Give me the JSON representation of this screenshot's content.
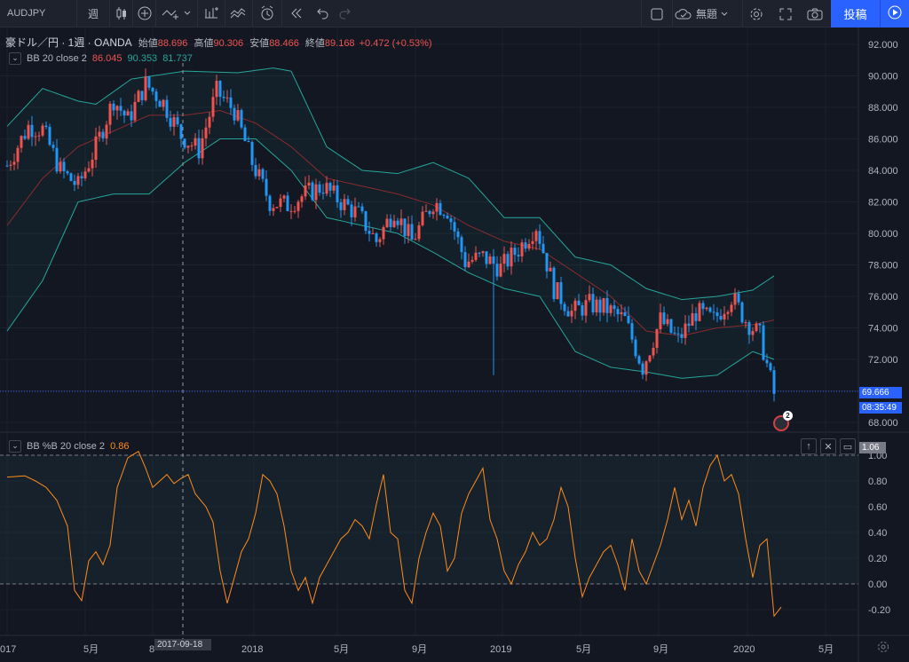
{
  "toolbar": {
    "symbol": "AUDJPY",
    "interval": "週",
    "layout_name": "無題",
    "publish_label": "投稿",
    "icons": [
      "plus-circle-icon",
      "indicators-icon",
      "chart-type-icon",
      "compare-icon",
      "templates-icon",
      "alert-clock-icon",
      "replay-icon",
      "undo-icon",
      "redo-icon",
      "square-icon",
      "cloud-icon",
      "gear-icon",
      "fullscreen-icon",
      "camera-icon",
      "play-icon"
    ]
  },
  "legend": {
    "title": "豪ドル／円 · 1週 · OANDA",
    "open_label": "始値",
    "open_value": "88.696",
    "high_label": "高値",
    "high_value": "90.306",
    "low_label": "安値",
    "low_value": "88.466",
    "close_label": "終値",
    "close_value": "89.168",
    "change": "+0.472 (+0.53%)",
    "bb_label": "BB 20 close 2",
    "bb_basis": "86.045",
    "bb_upper": "90.353",
    "bb_lower": "81.737",
    "pb_label": "BB %B 20 close 2",
    "pb_value": "0.86"
  },
  "price_scale": {
    "labels": [
      "92.000",
      "90.000",
      "88.000",
      "86.000",
      "84.000",
      "82.000",
      "80.000",
      "78.000",
      "76.000",
      "74.000",
      "72.000",
      "68.000"
    ],
    "current_price": "69.666",
    "countdown": "08:35:49"
  },
  "pb_scale": {
    "labels": [
      "0.80",
      "0.60",
      "0.40",
      "0.20",
      "0.00",
      "-0.20"
    ],
    "current_value": "1.06",
    "top_label": "1.00"
  },
  "time_axis": {
    "labels": [
      "017",
      "5月",
      "8",
      "2018",
      "5月",
      "9月",
      "2019",
      "5月",
      "9月",
      "2020",
      "5月"
    ],
    "crosshair_date": "2017-09-18"
  },
  "events": {
    "count": "2"
  },
  "colors": {
    "up": "#ef5350",
    "down": "#2196f3",
    "bb_band": "#26a69a",
    "bb_basis": "#8b2b2b",
    "pb_line": "#ff8c1a",
    "accent": "#2962ff",
    "background": "#131722"
  },
  "chart_data": {
    "type": "candlestick",
    "symbol": "AUDJPY",
    "interval": "1W",
    "ylim": [
      67.5,
      92.8
    ],
    "series_price_knots": [
      [
        0,
        84.3
      ],
      [
        6,
        86.8
      ],
      [
        10,
        86.6
      ],
      [
        15,
        84.0
      ],
      [
        20,
        83.0
      ],
      [
        25,
        85.5
      ],
      [
        30,
        88.5
      ],
      [
        34,
        87.2
      ],
      [
        39,
        89.5
      ],
      [
        44,
        88.3
      ],
      [
        49,
        86.2
      ],
      [
        54,
        85.3
      ],
      [
        59,
        89.0
      ],
      [
        64,
        87.8
      ],
      [
        69,
        84.5
      ],
      [
        74,
        82.0
      ],
      [
        79,
        81.8
      ],
      [
        84,
        82.5
      ],
      [
        89,
        83.0
      ],
      [
        94,
        82.0
      ],
      [
        99,
        81.2
      ],
      [
        104,
        79.5
      ],
      [
        109,
        81.5
      ],
      [
        114,
        79.5
      ],
      [
        120,
        82.0
      ],
      [
        124,
        81.5
      ],
      [
        129,
        78.2
      ],
      [
        134,
        78.5
      ],
      [
        139,
        77.8
      ],
      [
        144,
        79.0
      ],
      [
        149,
        80.5
      ],
      [
        154,
        76.5
      ],
      [
        159,
        75.0
      ],
      [
        164,
        75.5
      ],
      [
        169,
        75.2
      ],
      [
        174,
        74.5
      ],
      [
        179,
        71.5
      ],
      [
        184,
        74.5
      ],
      [
        189,
        73.2
      ],
      [
        194,
        75.0
      ],
      [
        199,
        74.5
      ],
      [
        204,
        76.0
      ],
      [
        208,
        74.5
      ],
      [
        212,
        73.5
      ],
      [
        216,
        69.8
      ]
    ],
    "bb_upper_knots": [
      [
        0,
        86.8
      ],
      [
        10,
        89.2
      ],
      [
        20,
        88.4
      ],
      [
        25,
        88.2
      ],
      [
        35,
        89.8
      ],
      [
        50,
        90.3
      ],
      [
        65,
        90.2
      ],
      [
        75,
        90.5
      ],
      [
        80,
        90.3
      ],
      [
        90,
        85.5
      ],
      [
        100,
        84.0
      ],
      [
        110,
        83.8
      ],
      [
        120,
        84.5
      ],
      [
        130,
        83.5
      ],
      [
        140,
        81.0
      ],
      [
        150,
        81.0
      ],
      [
        160,
        78.5
      ],
      [
        170,
        78.0
      ],
      [
        180,
        76.5
      ],
      [
        190,
        75.8
      ],
      [
        200,
        76.0
      ],
      [
        210,
        76.4
      ],
      [
        216,
        77.3
      ]
    ],
    "bb_lower_knots": [
      [
        0,
        73.8
      ],
      [
        10,
        77.0
      ],
      [
        20,
        82.0
      ],
      [
        30,
        82.5
      ],
      [
        40,
        82.5
      ],
      [
        50,
        84.5
      ],
      [
        60,
        86.0
      ],
      [
        70,
        86.0
      ],
      [
        80,
        84.0
      ],
      [
        90,
        81.0
      ],
      [
        100,
        80.5
      ],
      [
        110,
        80.0
      ],
      [
        120,
        78.8
      ],
      [
        130,
        77.5
      ],
      [
        140,
        76.5
      ],
      [
        150,
        76.0
      ],
      [
        160,
        72.5
      ],
      [
        170,
        71.5
      ],
      [
        180,
        71.2
      ],
      [
        190,
        70.8
      ],
      [
        200,
        71.0
      ],
      [
        210,
        72.5
      ],
      [
        216,
        72.0
      ]
    ],
    "bb_basis_knots": [
      [
        0,
        80.5
      ],
      [
        10,
        83.5
      ],
      [
        20,
        85.5
      ],
      [
        30,
        86.5
      ],
      [
        40,
        87.5
      ],
      [
        50,
        87.5
      ],
      [
        60,
        87.8
      ],
      [
        70,
        87.0
      ],
      [
        80,
        85.5
      ],
      [
        90,
        83.5
      ],
      [
        100,
        83.0
      ],
      [
        110,
        82.5
      ],
      [
        120,
        81.8
      ],
      [
        130,
        80.5
      ],
      [
        140,
        79.5
      ],
      [
        150,
        79.0
      ],
      [
        160,
        77.5
      ],
      [
        170,
        76.0
      ],
      [
        180,
        73.8
      ],
      [
        190,
        73.5
      ],
      [
        200,
        74.0
      ],
      [
        210,
        74.2
      ],
      [
        216,
        74.5
      ]
    ],
    "percent_b_knots": [
      [
        0,
        0.83
      ],
      [
        5,
        0.84
      ],
      [
        8,
        0.8
      ],
      [
        11,
        0.75
      ],
      [
        14,
        0.65
      ],
      [
        17,
        0.45
      ],
      [
        19,
        -0.05
      ],
      [
        21,
        -0.13
      ],
      [
        23,
        0.18
      ],
      [
        25,
        0.25
      ],
      [
        27,
        0.15
      ],
      [
        29,
        0.3
      ],
      [
        31,
        0.75
      ],
      [
        34,
        0.98
      ],
      [
        37,
        1.03
      ],
      [
        39,
        0.9
      ],
      [
        41,
        0.75
      ],
      [
        43,
        0.8
      ],
      [
        45,
        0.85
      ],
      [
        47,
        0.78
      ],
      [
        49,
        0.82
      ],
      [
        51,
        0.85
      ],
      [
        53,
        0.7
      ],
      [
        56,
        0.6
      ],
      [
        58,
        0.48
      ],
      [
        60,
        0.1
      ],
      [
        62,
        -0.15
      ],
      [
        64,
        0.05
      ],
      [
        66,
        0.25
      ],
      [
        68,
        0.35
      ],
      [
        70,
        0.55
      ],
      [
        72,
        0.85
      ],
      [
        74,
        0.8
      ],
      [
        76,
        0.7
      ],
      [
        78,
        0.45
      ],
      [
        80,
        0.1
      ],
      [
        82,
        -0.05
      ],
      [
        84,
        0.05
      ],
      [
        86,
        -0.15
      ],
      [
        88,
        0.05
      ],
      [
        90,
        0.15
      ],
      [
        92,
        0.25
      ],
      [
        94,
        0.35
      ],
      [
        96,
        0.4
      ],
      [
        98,
        0.5
      ],
      [
        100,
        0.45
      ],
      [
        102,
        0.35
      ],
      [
        104,
        0.62
      ],
      [
        106,
        0.85
      ],
      [
        108,
        0.4
      ],
      [
        110,
        0.35
      ],
      [
        112,
        -0.05
      ],
      [
        114,
        -0.15
      ],
      [
        116,
        0.2
      ],
      [
        118,
        0.4
      ],
      [
        120,
        0.55
      ],
      [
        122,
        0.45
      ],
      [
        124,
        0.1
      ],
      [
        126,
        0.2
      ],
      [
        128,
        0.55
      ],
      [
        130,
        0.7
      ],
      [
        132,
        0.8
      ],
      [
        134,
        0.9
      ],
      [
        136,
        0.5
      ],
      [
        138,
        0.35
      ],
      [
        140,
        0.1
      ],
      [
        142,
        0.0
      ],
      [
        144,
        0.15
      ],
      [
        146,
        0.25
      ],
      [
        148,
        0.4
      ],
      [
        150,
        0.3
      ],
      [
        152,
        0.35
      ],
      [
        154,
        0.5
      ],
      [
        156,
        0.75
      ],
      [
        158,
        0.6
      ],
      [
        160,
        0.2
      ],
      [
        162,
        -0.1
      ],
      [
        164,
        0.05
      ],
      [
        166,
        0.15
      ],
      [
        168,
        0.25
      ],
      [
        170,
        0.3
      ],
      [
        172,
        0.15
      ],
      [
        174,
        -0.05
      ],
      [
        176,
        0.35
      ],
      [
        178,
        0.1
      ],
      [
        180,
        0.0
      ],
      [
        182,
        0.15
      ],
      [
        184,
        0.3
      ],
      [
        186,
        0.5
      ],
      [
        188,
        0.75
      ],
      [
        190,
        0.5
      ],
      [
        192,
        0.65
      ],
      [
        194,
        0.45
      ],
      [
        196,
        0.75
      ],
      [
        198,
        0.92
      ],
      [
        200,
        1.0
      ],
      [
        202,
        0.8
      ],
      [
        204,
        0.85
      ],
      [
        206,
        0.7
      ],
      [
        208,
        0.35
      ],
      [
        210,
        0.05
      ],
      [
        212,
        0.3
      ],
      [
        214,
        0.35
      ],
      [
        216,
        -0.25
      ],
      [
        218,
        -0.18
      ]
    ]
  }
}
